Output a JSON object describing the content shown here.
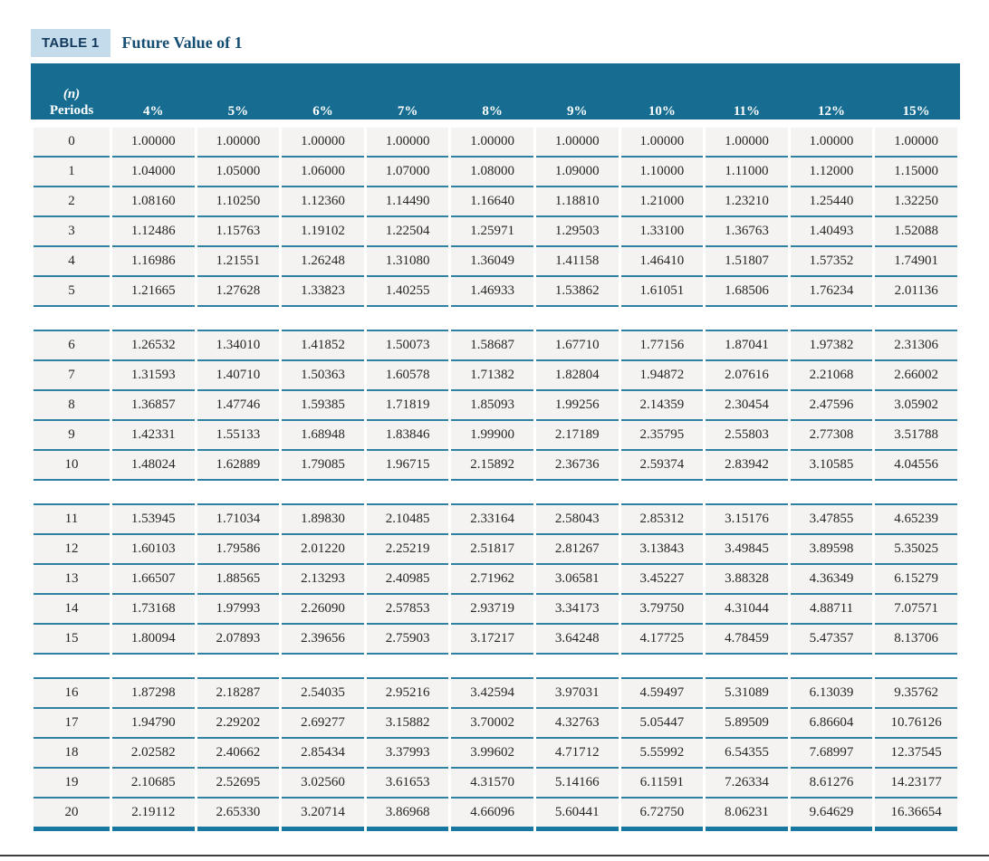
{
  "colors": {
    "header_bg": "#176d91",
    "row_line": "#2e81a3",
    "bottom_border": "#1777a0",
    "row_bg": "#f4f3f1",
    "badge_bg": "#c3dbea",
    "badge_text": "#13395c",
    "title_text": "#164e73"
  },
  "table": {
    "badge": "TABLE 1",
    "title": "Future Value of 1",
    "period_header_line1": "(n)",
    "period_header_line2": "Periods",
    "columns": [
      "4%",
      "5%",
      "6%",
      "7%",
      "8%",
      "9%",
      "10%",
      "11%",
      "12%",
      "15%"
    ],
    "group_breaks_after": [
      5,
      10,
      15
    ],
    "rows": [
      {
        "n": "0",
        "values": [
          "1.00000",
          "1.00000",
          "1.00000",
          "1.00000",
          "1.00000",
          "1.00000",
          "1.00000",
          "1.00000",
          "1.00000",
          "1.00000"
        ]
      },
      {
        "n": "1",
        "values": [
          "1.04000",
          "1.05000",
          "1.06000",
          "1.07000",
          "1.08000",
          "1.09000",
          "1.10000",
          "1.11000",
          "1.12000",
          "1.15000"
        ]
      },
      {
        "n": "2",
        "values": [
          "1.08160",
          "1.10250",
          "1.12360",
          "1.14490",
          "1.16640",
          "1.18810",
          "1.21000",
          "1.23210",
          "1.25440",
          "1.32250"
        ]
      },
      {
        "n": "3",
        "values": [
          "1.12486",
          "1.15763",
          "1.19102",
          "1.22504",
          "1.25971",
          "1.29503",
          "1.33100",
          "1.36763",
          "1.40493",
          "1.52088"
        ]
      },
      {
        "n": "4",
        "values": [
          "1.16986",
          "1.21551",
          "1.26248",
          "1.31080",
          "1.36049",
          "1.41158",
          "1.46410",
          "1.51807",
          "1.57352",
          "1.74901"
        ]
      },
      {
        "n": "5",
        "values": [
          "1.21665",
          "1.27628",
          "1.33823",
          "1.40255",
          "1.46933",
          "1.53862",
          "1.61051",
          "1.68506",
          "1.76234",
          "2.01136"
        ]
      },
      {
        "n": "6",
        "values": [
          "1.26532",
          "1.34010",
          "1.41852",
          "1.50073",
          "1.58687",
          "1.67710",
          "1.77156",
          "1.87041",
          "1.97382",
          "2.31306"
        ]
      },
      {
        "n": "7",
        "values": [
          "1.31593",
          "1.40710",
          "1.50363",
          "1.60578",
          "1.71382",
          "1.82804",
          "1.94872",
          "2.07616",
          "2.21068",
          "2.66002"
        ]
      },
      {
        "n": "8",
        "values": [
          "1.36857",
          "1.47746",
          "1.59385",
          "1.71819",
          "1.85093",
          "1.99256",
          "2.14359",
          "2.30454",
          "2.47596",
          "3.05902"
        ]
      },
      {
        "n": "9",
        "values": [
          "1.42331",
          "1.55133",
          "1.68948",
          "1.83846",
          "1.99900",
          "2.17189",
          "2.35795",
          "2.55803",
          "2.77308",
          "3.51788"
        ]
      },
      {
        "n": "10",
        "values": [
          "1.48024",
          "1.62889",
          "1.79085",
          "1.96715",
          "2.15892",
          "2.36736",
          "2.59374",
          "2.83942",
          "3.10585",
          "4.04556"
        ]
      },
      {
        "n": "11",
        "values": [
          "1.53945",
          "1.71034",
          "1.89830",
          "2.10485",
          "2.33164",
          "2.58043",
          "2.85312",
          "3.15176",
          "3.47855",
          "4.65239"
        ]
      },
      {
        "n": "12",
        "values": [
          "1.60103",
          "1.79586",
          "2.01220",
          "2.25219",
          "2.51817",
          "2.81267",
          "3.13843",
          "3.49845",
          "3.89598",
          "5.35025"
        ]
      },
      {
        "n": "13",
        "values": [
          "1.66507",
          "1.88565",
          "2.13293",
          "2.40985",
          "2.71962",
          "3.06581",
          "3.45227",
          "3.88328",
          "4.36349",
          "6.15279"
        ]
      },
      {
        "n": "14",
        "values": [
          "1.73168",
          "1.97993",
          "2.26090",
          "2.57853",
          "2.93719",
          "3.34173",
          "3.79750",
          "4.31044",
          "4.88711",
          "7.07571"
        ]
      },
      {
        "n": "15",
        "values": [
          "1.80094",
          "2.07893",
          "2.39656",
          "2.75903",
          "3.17217",
          "3.64248",
          "4.17725",
          "4.78459",
          "5.47357",
          "8.13706"
        ]
      },
      {
        "n": "16",
        "values": [
          "1.87298",
          "2.18287",
          "2.54035",
          "2.95216",
          "3.42594",
          "3.97031",
          "4.59497",
          "5.31089",
          "6.13039",
          "9.35762"
        ]
      },
      {
        "n": "17",
        "values": [
          "1.94790",
          "2.29202",
          "2.69277",
          "3.15882",
          "3.70002",
          "4.32763",
          "5.05447",
          "5.89509",
          "6.86604",
          "10.76126"
        ]
      },
      {
        "n": "18",
        "values": [
          "2.02582",
          "2.40662",
          "2.85434",
          "3.37993",
          "3.99602",
          "4.71712",
          "5.55992",
          "6.54355",
          "7.68997",
          "12.37545"
        ]
      },
      {
        "n": "19",
        "values": [
          "2.10685",
          "2.52695",
          "3.02560",
          "3.61653",
          "4.31570",
          "5.14166",
          "6.11591",
          "7.26334",
          "8.61276",
          "14.23177"
        ]
      },
      {
        "n": "20",
        "values": [
          "2.19112",
          "2.65330",
          "3.20714",
          "3.86968",
          "4.66096",
          "5.60441",
          "6.72750",
          "8.06231",
          "9.64629",
          "16.36654"
        ]
      }
    ]
  }
}
